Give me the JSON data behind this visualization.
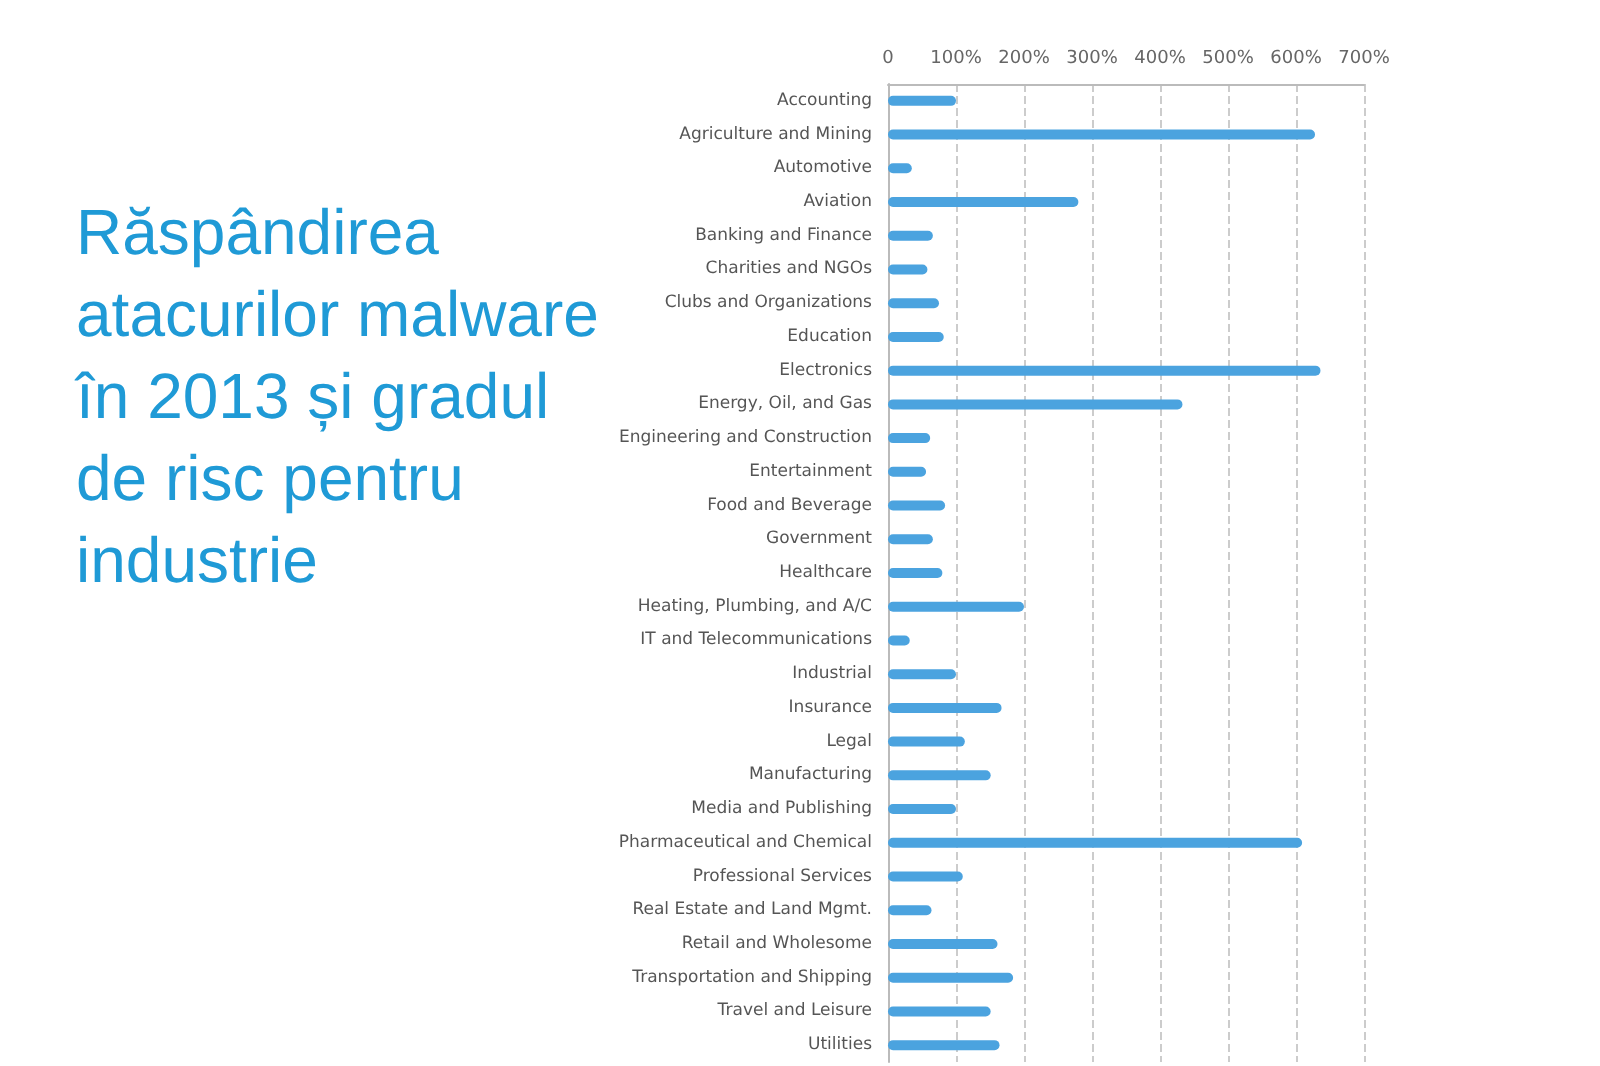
{
  "chart_data": {
    "type": "bar",
    "orientation": "horizontal",
    "title": "Răspândirea atacurilor malware în 2013 și gradul de risc pentru industrie",
    "categories": [
      "Accounting",
      "Agriculture and Mining",
      "Automotive",
      "Aviation",
      "Banking and Finance",
      "Charities and NGOs",
      "Clubs and Organizations",
      "Education",
      "Electronics",
      "Energy, Oil, and Gas",
      "Engineering and Construction",
      "Entertainment",
      "Food and Beverage",
      "Government",
      "Healthcare",
      "Heating, Plumbing, and A/C",
      "IT and Telecommunications",
      "Industrial",
      "Insurance",
      "Legal",
      "Manufacturing",
      "Media and Publishing",
      "Pharmaceutical and Chemical",
      "Professional Services",
      "Real Estate and Land Mgmt.",
      "Retail and Wholesome",
      "Transportation and Shipping",
      "Travel and Leisure",
      "Utilities"
    ],
    "values": [
      100,
      628,
      35,
      280,
      66,
      58,
      75,
      82,
      636,
      433,
      62,
      56,
      84,
      66,
      80,
      200,
      32,
      100,
      167,
      113,
      151,
      100,
      609,
      110,
      64,
      161,
      184,
      151,
      164
    ],
    "color": "#4ba3df",
    "xlim": [
      0,
      700
    ],
    "xticks": [
      0,
      {
        "value": 100,
        "label": "100%"
      },
      {
        "value": 200,
        "label": "200%"
      },
      {
        "value": 300,
        "label": "300%"
      },
      {
        "value": 400,
        "label": "400%"
      },
      {
        "value": 500,
        "label": "500%"
      },
      {
        "value": 600,
        "label": "600%"
      },
      {
        "value": 700,
        "label": "700%"
      }
    ],
    "grid": "x"
  }
}
